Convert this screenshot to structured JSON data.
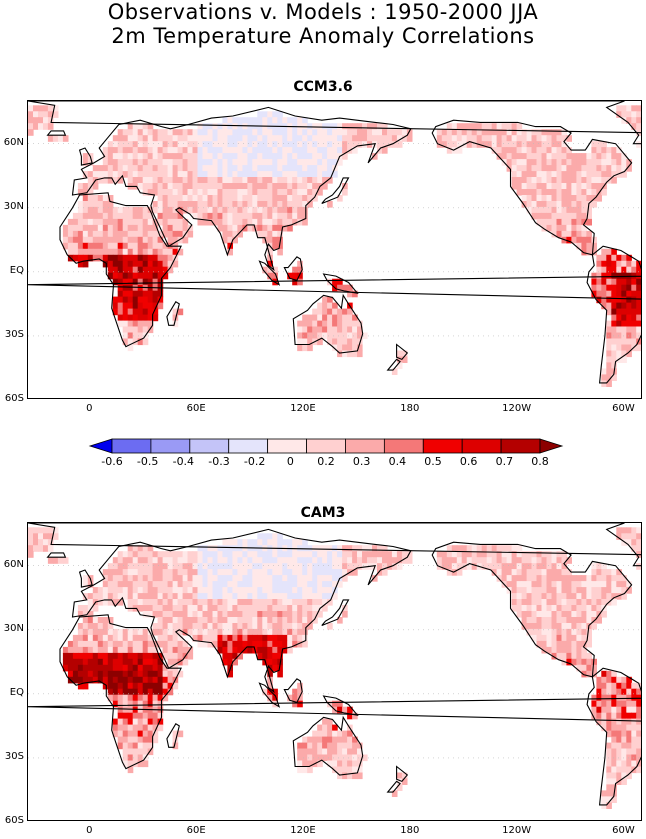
{
  "header": {
    "title_line1": "Observations v. Models : 1950-2000 JJA",
    "title_line2": "2m Temperature Anomaly Correlations"
  },
  "axes": {
    "lat_labels": [
      "60N",
      "30N",
      "EQ",
      "30S",
      "60S"
    ],
    "lon_labels": [
      "0",
      "60E",
      "120E",
      "180",
      "120W",
      "60W"
    ]
  },
  "panels": [
    {
      "title": "CCM3.6",
      "style": "ccm"
    },
    {
      "title": "CAM3",
      "style": "cam"
    }
  ],
  "colorbar": {
    "labels": [
      "-0.6",
      "-0.5",
      "-0.4",
      "-0.3",
      "-0.2",
      "0",
      "0.2",
      "0.3",
      "0.4",
      "0.5",
      "0.6",
      "0.7",
      "0.8"
    ],
    "colors": [
      "#0000ee",
      "#6c6cf2",
      "#9a9af5",
      "#c4c4f8",
      "#e4e4fb",
      "#ffe8e8",
      "#ffd0d0",
      "#fbaaaa",
      "#f47878",
      "#f00000",
      "#dd0000",
      "#b40000",
      "#8c0000"
    ]
  }
}
